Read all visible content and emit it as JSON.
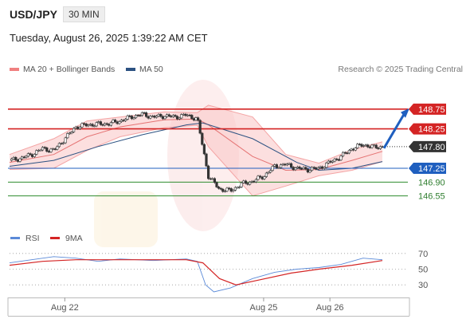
{
  "header": {
    "pair": "USD/JPY",
    "timeframe": "30 MIN",
    "datetime": "Tuesday, August 26, 2025 1:39:22 AM CET"
  },
  "legend": {
    "bollinger_label": "MA 20 + Bollinger Bands",
    "ma50_label": "MA 50",
    "credit": "Research © 2025 Trading Central",
    "colors": {
      "bollinger": "#f08080",
      "ma50": "#2c5282"
    }
  },
  "indicator_legend": {
    "rsi_label": "RSI",
    "ma9_label": "9MA",
    "colors": {
      "rsi": "#5b8ad8",
      "ma9": "#d42424"
    }
  },
  "chart_data": [
    {
      "type": "candlestick",
      "instrument": "USD/JPY",
      "ylim": [
        146.3,
        149.05
      ],
      "xlim": [
        "2025-08-21 04:00",
        "2025-08-26 19:00"
      ],
      "x_ticks": [
        "Aug 22",
        "Aug 25",
        "Aug 26"
      ],
      "x_tick_times": [
        "2025-08-22 00:00",
        "2025-08-25 00:00",
        "2025-08-26 00:00"
      ],
      "levels": [
        {
          "label": "148.75",
          "value": 148.75,
          "color": "#d42424",
          "style": "solid"
        },
        {
          "label": "148.25",
          "value": 148.25,
          "color": "#d42424",
          "style": "solid"
        },
        {
          "label": "147.80",
          "value": 147.8,
          "color": "#333333",
          "style": "dotted"
        },
        {
          "label": "147.25",
          "value": 147.25,
          "color": "#1f5fbf",
          "style": "solid"
        },
        {
          "label": "146.90",
          "value": 146.9,
          "color": "#2e8b2e",
          "style": "solid"
        },
        {
          "label": "146.55",
          "value": 146.55,
          "color": "#2e8b2e",
          "style": "solid"
        }
      ],
      "last_price": "147.80",
      "arrow": {
        "from": [
          147.8
        ],
        "to": [
          148.75
        ],
        "direction": "up"
      },
      "close_path": [
        {
          "t": "2025-08-21 04:00",
          "v": 147.45
        },
        {
          "t": "2025-08-21 08:00",
          "v": 147.5
        },
        {
          "t": "2025-08-21 12:00",
          "v": 147.6
        },
        {
          "t": "2025-08-21 16:00",
          "v": 147.75
        },
        {
          "t": "2025-08-21 20:00",
          "v": 147.7
        },
        {
          "t": "2025-08-22 00:00",
          "v": 148.0
        },
        {
          "t": "2025-08-22 04:00",
          "v": 148.3
        },
        {
          "t": "2025-08-22 08:00",
          "v": 148.35
        },
        {
          "t": "2025-08-22 12:00",
          "v": 148.37
        },
        {
          "t": "2025-08-22 16:00",
          "v": 148.38
        },
        {
          "t": "2025-08-22 20:00",
          "v": 148.45
        },
        {
          "t": "2025-08-23 00:00",
          "v": 148.55
        },
        {
          "t": "2025-08-23 04:00",
          "v": 148.62
        },
        {
          "t": "2025-08-23 08:00",
          "v": 148.55
        },
        {
          "t": "2025-08-23 12:00",
          "v": 148.58
        },
        {
          "t": "2025-08-23 16:00",
          "v": 148.55
        },
        {
          "t": "2025-08-23 20:00",
          "v": 148.6
        },
        {
          "t": "2025-08-24 00:00",
          "v": 148.5
        },
        {
          "t": "2025-08-24 04:00",
          "v": 147.05
        },
        {
          "t": "2025-08-24 08:00",
          "v": 146.72
        },
        {
          "t": "2025-08-24 12:00",
          "v": 146.68
        },
        {
          "t": "2025-08-24 16:00",
          "v": 146.85
        },
        {
          "t": "2025-08-24 20:00",
          "v": 146.92
        },
        {
          "t": "2025-08-25 00:00",
          "v": 147.05
        },
        {
          "t": "2025-08-25 04:00",
          "v": 147.3
        },
        {
          "t": "2025-08-25 08:00",
          "v": 147.35
        },
        {
          "t": "2025-08-25 12:00",
          "v": 147.25
        },
        {
          "t": "2025-08-25 16:00",
          "v": 147.22
        },
        {
          "t": "2025-08-25 20:00",
          "v": 147.25
        },
        {
          "t": "2025-08-26 00:00",
          "v": 147.4
        },
        {
          "t": "2025-08-26 04:00",
          "v": 147.55
        },
        {
          "t": "2025-08-26 08:00",
          "v": 147.75
        },
        {
          "t": "2025-08-26 12:00",
          "v": 147.85
        },
        {
          "t": "2025-08-26 16:00",
          "v": 147.78
        },
        {
          "t": "2025-08-26 19:00",
          "v": 147.8
        }
      ],
      "ma20_path": [
        {
          "t": "2025-08-21 04:00",
          "v": 147.4
        },
        {
          "t": "2025-08-21 20:00",
          "v": 147.6
        },
        {
          "t": "2025-08-22 08:00",
          "v": 148.05
        },
        {
          "t": "2025-08-22 20:00",
          "v": 148.3
        },
        {
          "t": "2025-08-23 12:00",
          "v": 148.48
        },
        {
          "t": "2025-08-24 00:00",
          "v": 148.5
        },
        {
          "t": "2025-08-24 04:00",
          "v": 148.35
        },
        {
          "t": "2025-08-24 20:00",
          "v": 147.55
        },
        {
          "t": "2025-08-25 08:00",
          "v": 147.2
        },
        {
          "t": "2025-08-25 20:00",
          "v": 147.22
        },
        {
          "t": "2025-08-26 08:00",
          "v": 147.45
        },
        {
          "t": "2025-08-26 19:00",
          "v": 147.68
        }
      ],
      "bollinger_upper": [
        {
          "t": "2025-08-21 04:00",
          "v": 147.6
        },
        {
          "t": "2025-08-21 20:00",
          "v": 148.0
        },
        {
          "t": "2025-08-22 08:00",
          "v": 148.45
        },
        {
          "t": "2025-08-22 20:00",
          "v": 148.55
        },
        {
          "t": "2025-08-23 12:00",
          "v": 148.68
        },
        {
          "t": "2025-08-24 00:00",
          "v": 148.66
        },
        {
          "t": "2025-08-24 04:00",
          "v": 148.85
        },
        {
          "t": "2025-08-24 20:00",
          "v": 148.55
        },
        {
          "t": "2025-08-25 08:00",
          "v": 147.6
        },
        {
          "t": "2025-08-25 20:00",
          "v": 147.38
        },
        {
          "t": "2025-08-26 08:00",
          "v": 147.72
        },
        {
          "t": "2025-08-26 19:00",
          "v": 147.92
        }
      ],
      "bollinger_lower": [
        {
          "t": "2025-08-21 04:00",
          "v": 147.22
        },
        {
          "t": "2025-08-21 20:00",
          "v": 147.25
        },
        {
          "t": "2025-08-22 08:00",
          "v": 147.7
        },
        {
          "t": "2025-08-22 20:00",
          "v": 148.05
        },
        {
          "t": "2025-08-23 12:00",
          "v": 148.28
        },
        {
          "t": "2025-08-24 00:00",
          "v": 148.34
        },
        {
          "t": "2025-08-24 04:00",
          "v": 147.8
        },
        {
          "t": "2025-08-24 20:00",
          "v": 146.55
        },
        {
          "t": "2025-08-25 08:00",
          "v": 146.8
        },
        {
          "t": "2025-08-25 20:00",
          "v": 147.06
        },
        {
          "t": "2025-08-26 08:00",
          "v": 147.2
        },
        {
          "t": "2025-08-26 19:00",
          "v": 147.42
        }
      ],
      "ma50_path": [
        {
          "t": "2025-08-21 04:00",
          "v": 147.3
        },
        {
          "t": "2025-08-21 20:00",
          "v": 147.45
        },
        {
          "t": "2025-08-22 12:00",
          "v": 147.8
        },
        {
          "t": "2025-08-23 04:00",
          "v": 148.1
        },
        {
          "t": "2025-08-23 20:00",
          "v": 148.35
        },
        {
          "t": "2025-08-24 02:00",
          "v": 148.4
        },
        {
          "t": "2025-08-24 20:00",
          "v": 148.0
        },
        {
          "t": "2025-08-25 12:00",
          "v": 147.4
        },
        {
          "t": "2025-08-25 20:00",
          "v": 147.2
        },
        {
          "t": "2025-08-26 08:00",
          "v": 147.25
        },
        {
          "t": "2025-08-26 19:00",
          "v": 147.42
        }
      ]
    },
    {
      "type": "line",
      "title": "RSI",
      "ylim": [
        20,
        80
      ],
      "y_ticks": [
        70,
        50,
        30
      ],
      "series": [
        {
          "name": "RSI",
          "values": [
            {
              "t": "2025-08-21 04:00",
              "v": 58
            },
            {
              "t": "2025-08-21 12:00",
              "v": 62
            },
            {
              "t": "2025-08-21 20:00",
              "v": 66
            },
            {
              "t": "2025-08-22 04:00",
              "v": 64
            },
            {
              "t": "2025-08-22 12:00",
              "v": 60
            },
            {
              "t": "2025-08-22 20:00",
              "v": 63
            },
            {
              "t": "2025-08-23 08:00",
              "v": 61
            },
            {
              "t": "2025-08-23 20:00",
              "v": 63
            },
            {
              "t": "2025-08-24 00:00",
              "v": 60
            },
            {
              "t": "2025-08-24 03:00",
              "v": 30
            },
            {
              "t": "2025-08-24 06:00",
              "v": 21
            },
            {
              "t": "2025-08-24 12:00",
              "v": 26
            },
            {
              "t": "2025-08-24 20:00",
              "v": 38
            },
            {
              "t": "2025-08-25 04:00",
              "v": 46
            },
            {
              "t": "2025-08-25 12:00",
              "v": 50
            },
            {
              "t": "2025-08-25 20:00",
              "v": 52
            },
            {
              "t": "2025-08-26 04:00",
              "v": 56
            },
            {
              "t": "2025-08-26 12:00",
              "v": 64
            },
            {
              "t": "2025-08-26 19:00",
              "v": 62
            }
          ]
        },
        {
          "name": "9MA",
          "values": [
            {
              "t": "2025-08-21 04:00",
              "v": 55
            },
            {
              "t": "2025-08-21 16:00",
              "v": 60
            },
            {
              "t": "2025-08-22 04:00",
              "v": 62
            },
            {
              "t": "2025-08-22 20:00",
              "v": 62
            },
            {
              "t": "2025-08-23 20:00",
              "v": 62
            },
            {
              "t": "2025-08-24 02:00",
              "v": 58
            },
            {
              "t": "2025-08-24 08:00",
              "v": 38
            },
            {
              "t": "2025-08-24 14:00",
              "v": 30
            },
            {
              "t": "2025-08-24 22:00",
              "v": 36
            },
            {
              "t": "2025-08-25 10:00",
              "v": 45
            },
            {
              "t": "2025-08-25 20:00",
              "v": 50
            },
            {
              "t": "2025-08-26 08:00",
              "v": 55
            },
            {
              "t": "2025-08-26 19:00",
              "v": 61
            }
          ]
        }
      ]
    }
  ]
}
